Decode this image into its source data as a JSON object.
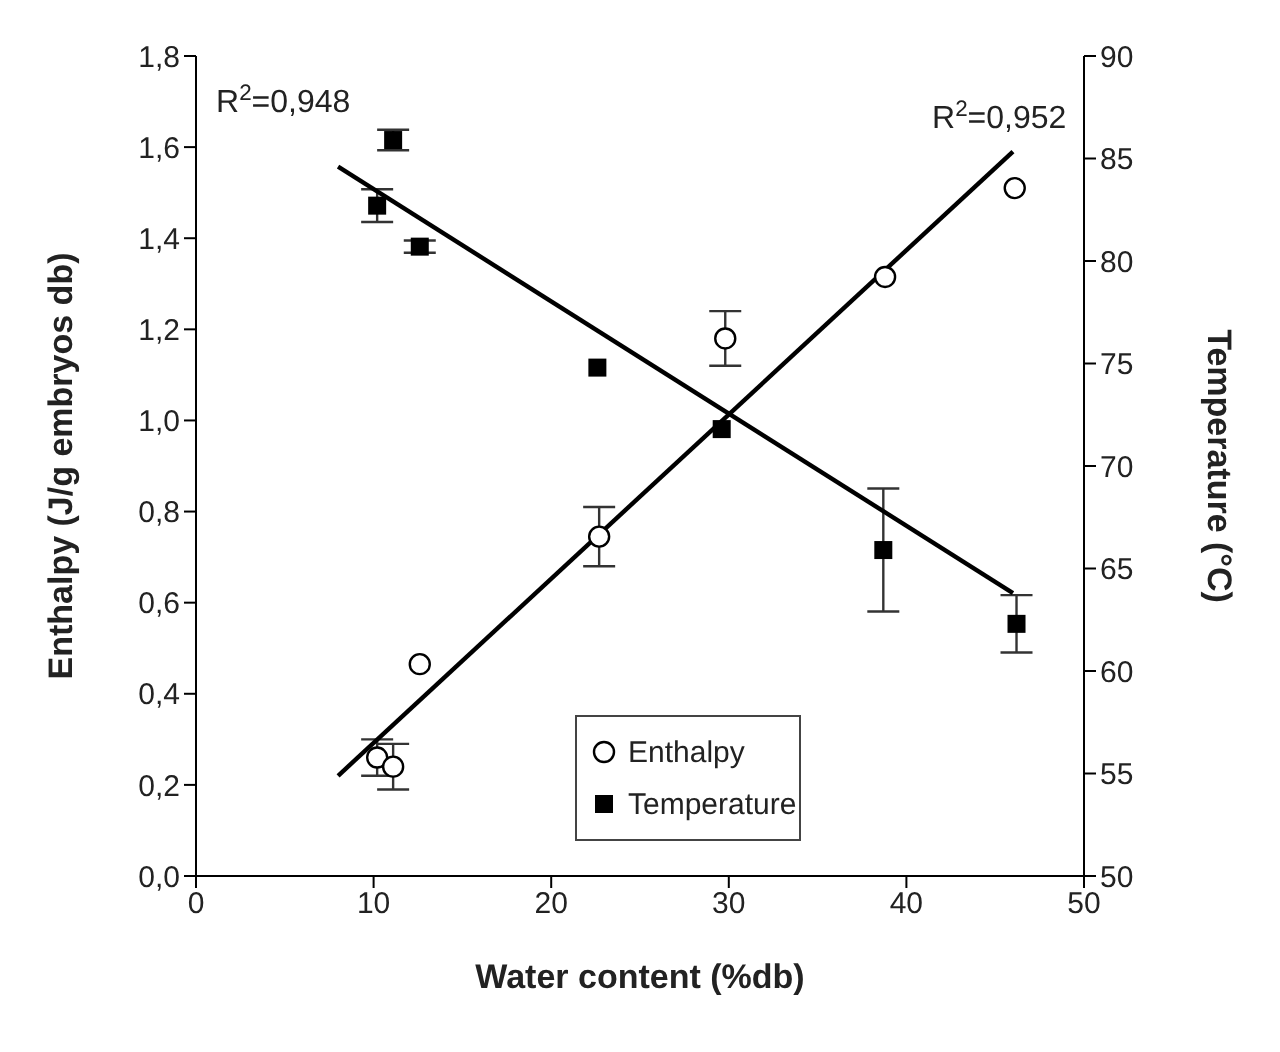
{
  "chart_data": {
    "type": "scatter",
    "xlabel": "Water content (%db)",
    "ylabel": "Enthalpy (J/g embryos db)",
    "y2label": "Temperature (°C)",
    "xlim": [
      0,
      50
    ],
    "xticks": [
      0,
      10,
      20,
      30,
      40,
      50
    ],
    "ylim": [
      0,
      1.8
    ],
    "yticks": [
      {
        "value": 0,
        "label": "0,0"
      },
      {
        "value": 0.2,
        "label": "0,2"
      },
      {
        "value": 0.4,
        "label": "0,4"
      },
      {
        "value": 0.6,
        "label": "0,6"
      },
      {
        "value": 0.8,
        "label": "0,8"
      },
      {
        "value": 1,
        "label": "1,0"
      },
      {
        "value": 1.2,
        "label": "1,2"
      },
      {
        "value": 1.4,
        "label": "1,4"
      },
      {
        "value": 1.6,
        "label": "1,6"
      },
      {
        "value": 1.8,
        "label": "1,8"
      }
    ],
    "y2lim": [
      50,
      90
    ],
    "y2ticks": [
      50,
      55,
      60,
      65,
      70,
      75,
      80,
      85,
      90
    ],
    "grid": false,
    "legend": "bottom",
    "annotations": [
      "R$^{2}$=0,948",
      "R$^{2}$=0,952"
    ],
    "series": [
      {
        "name": "Enthalpy",
        "type": "scatter",
        "marker": "circle",
        "color": "#000000",
        "x": [
          10.2,
          11.1,
          12.6,
          22.7,
          29.8,
          38.8,
          46.1
        ],
        "values": [
          0.26,
          0.24,
          0.465,
          0.745,
          1.18,
          1.315,
          1.51
        ],
        "errors": [
          0.04,
          0.05,
          null,
          0.065,
          0.06,
          null,
          null
        ]
      },
      {
        "name": "Temperature",
        "type": "scatter",
        "marker": "square",
        "axis": "y2",
        "color": "#000000",
        "x": [
          10.2,
          11.1,
          12.6,
          22.6,
          29.6,
          38.7,
          46.2
        ],
        "values": [
          82.7,
          85.9,
          80.7,
          74.8,
          71.8,
          65.9,
          62.3
        ],
        "errors": [
          0.8,
          0.5,
          0.3,
          null,
          null,
          3,
          1.4
        ]
      },
      {
        "type": "line",
        "marker": "none",
        "color": "#000000",
        "x": [
          8,
          46
        ],
        "values": [
          0.22,
          1.59
        ]
      },
      {
        "type": "line",
        "marker": "none",
        "axis": "y2",
        "color": "#000000",
        "x": [
          8,
          46
        ],
        "values": [
          84.6,
          63.8
        ]
      }
    ]
  }
}
